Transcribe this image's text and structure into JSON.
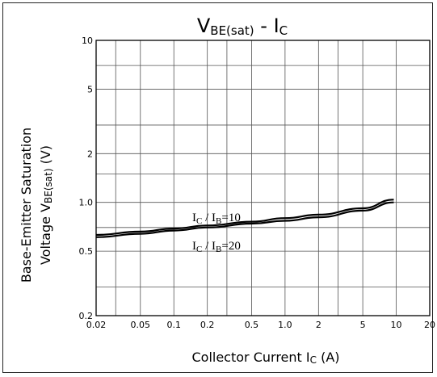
{
  "chart_data": {
    "type": "line",
    "title_main": "V",
    "title_sub": "BE(sat)",
    "title_tail": " - I",
    "title_tail_sub": "C",
    "ylabel_line1": "Base-Emitter Saturation",
    "ylabel_line2_main": "Voltage V",
    "ylabel_line2_sub": "BE(sat)",
    "ylabel_line2_tail": " (V)",
    "xlabel_main": "Collector Current I",
    "xlabel_sub": "C",
    "xlabel_tail": " (A)",
    "xscale": "log",
    "yscale": "log",
    "xlim": [
      0.02,
      20
    ],
    "ylim": [
      0.2,
      10
    ],
    "grid": true,
    "x_ticks": [
      {
        "v": 0.02,
        "label": "0.02"
      },
      {
        "v": 0.05,
        "label": "0.05"
      },
      {
        "v": 0.1,
        "label": "0.1"
      },
      {
        "v": 0.2,
        "label": "0.2"
      },
      {
        "v": 0.5,
        "label": "0.5"
      },
      {
        "v": 1,
        "label": "1.0"
      },
      {
        "v": 2,
        "label": "2"
      },
      {
        "v": 5,
        "label": "5"
      },
      {
        "v": 10,
        "label": "10"
      },
      {
        "v": 20,
        "label": "20"
      }
    ],
    "y_ticks": [
      {
        "v": 0.2,
        "label": "0.2"
      },
      {
        "v": 0.5,
        "label": "0.5"
      },
      {
        "v": 1,
        "label": "1.0"
      },
      {
        "v": 2,
        "label": "2"
      },
      {
        "v": 5,
        "label": "5"
      },
      {
        "v": 10,
        "label": "10"
      }
    ],
    "x_grid": [
      0.02,
      0.03,
      0.05,
      0.1,
      0.2,
      0.3,
      0.5,
      1,
      2,
      3,
      5,
      10,
      20
    ],
    "y_grid": [
      0.2,
      0.3,
      0.5,
      0.7,
      1,
      1.5,
      2,
      3,
      5,
      7,
      10
    ],
    "series": [
      {
        "name_main": "I",
        "name_sub1": "C",
        "name_mid": " / I",
        "name_sub2": "B",
        "name_tail": "=10",
        "x": [
          0.02,
          0.05,
          0.1,
          0.2,
          0.5,
          1,
          2,
          5,
          9.5
        ],
        "y": [
          0.63,
          0.66,
          0.69,
          0.72,
          0.76,
          0.8,
          0.84,
          0.92,
          1.04
        ]
      },
      {
        "name_main": "I",
        "name_sub1": "C",
        "name_mid": " / I",
        "name_sub2": "B",
        "name_tail": "=20",
        "x": [
          0.02,
          0.05,
          0.1,
          0.2,
          0.5,
          1,
          2,
          5,
          9.5
        ],
        "y": [
          0.61,
          0.64,
          0.67,
          0.7,
          0.74,
          0.77,
          0.81,
          0.89,
          1.0
        ]
      }
    ]
  }
}
